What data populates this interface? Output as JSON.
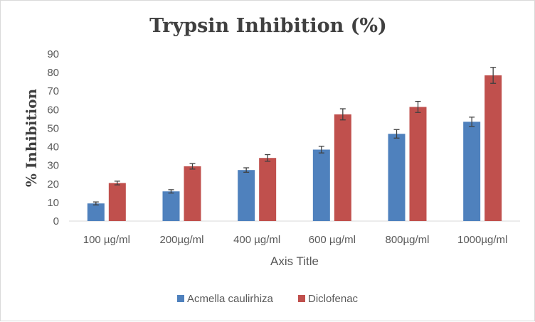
{
  "chart_data": {
    "type": "bar",
    "title": "Trypsin Inhibition (%)",
    "xlabel": "Axis Title",
    "ylabel": "% Inhibition",
    "categories": [
      "100 µg/ml",
      "200µg/ml",
      "400 µg/ml",
      "600 µg/ml",
      "800µg/ml",
      "1000µg/ml"
    ],
    "series": [
      {
        "name": "Acmella caulirhiza",
        "color": "#4f81bd",
        "values": [
          9.5,
          16,
          27.5,
          38.5,
          47,
          53.5
        ],
        "errors": [
          0.8,
          0.9,
          1.2,
          1.8,
          2.3,
          2.5
        ]
      },
      {
        "name": "Diclofenac",
        "color": "#c0504d",
        "values": [
          20.5,
          29.5,
          34,
          57.5,
          61.5,
          78.5
        ],
        "errors": [
          1.0,
          1.5,
          1.8,
          3.0,
          3.0,
          4.3
        ]
      }
    ],
    "ylim": [
      0,
      90
    ],
    "yticks": [
      0,
      10,
      20,
      30,
      40,
      50,
      60,
      70,
      80,
      90
    ],
    "grid": false,
    "legend": "bottom",
    "error_bars": true
  }
}
